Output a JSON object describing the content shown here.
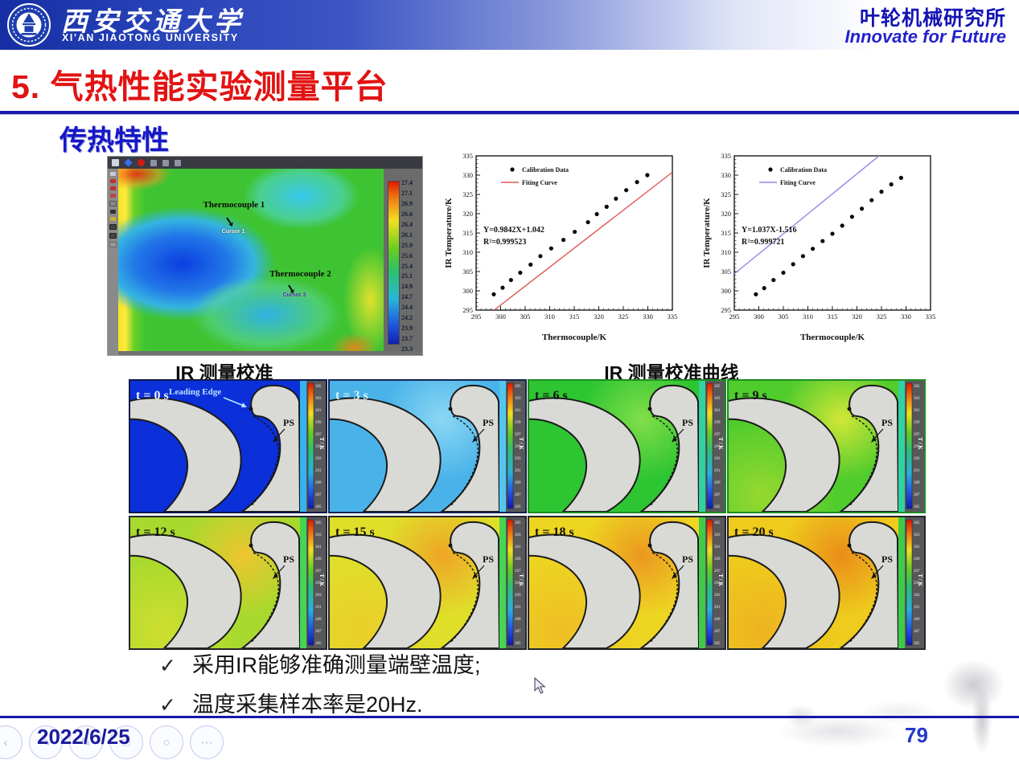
{
  "header": {
    "university_cn": "西安交通大学",
    "university_en": "XI'AN JIAOTONG UNIVERSITY",
    "institute": "叶轮机械研究所",
    "slogan": "Innovate for Future"
  },
  "page": {
    "title": "5. 气热性能实验测量平台",
    "section": "传热特性"
  },
  "ir_window": {
    "annotations": {
      "thermocouple1": "Thermocouple 1",
      "cursor1": "Cursor 1",
      "thermocouple2": "Thermocouple 2",
      "cursor2": "Cursor 3"
    },
    "colorbar_ticks": [
      "27.4",
      "27.1",
      "26.9",
      "26.6",
      "26.4",
      "26.1",
      "25.9",
      "25.6",
      "25.4",
      "25.1",
      "24.9",
      "24.7",
      "24.4",
      "24.2",
      "23.9",
      "23.7",
      "23.3"
    ]
  },
  "captions": {
    "ir_left": "IR 测量校准",
    "ir_right": "IR 测量校准曲线"
  },
  "chart_data": [
    {
      "type": "scatter",
      "xlabel": "Thermocouple/K",
      "ylabel": "IR Temperature/K",
      "xlim": [
        295,
        335
      ],
      "ylim": [
        295,
        335
      ],
      "tick_step": 5,
      "legend": [
        "Calibration Data",
        "Fiting Curve"
      ],
      "equation": "Y=0.9842X+1.042",
      "r_squared": "R²=0.999523",
      "fit": {
        "slope": 0.9842,
        "intercept": 1.042,
        "color": "#e05a5a"
      },
      "points": [
        [
          298.6,
          299.1
        ],
        [
          300.4,
          300.8
        ],
        [
          302.1,
          302.8
        ],
        [
          304.0,
          304.7
        ],
        [
          306.1,
          306.8
        ],
        [
          308.1,
          309.0
        ],
        [
          310.3,
          311.0
        ],
        [
          312.8,
          313.2
        ],
        [
          315.1,
          315.3
        ],
        [
          317.8,
          317.8
        ],
        [
          319.6,
          319.9
        ],
        [
          321.6,
          321.8
        ],
        [
          323.5,
          323.9
        ],
        [
          325.6,
          326.1
        ],
        [
          327.8,
          328.2
        ],
        [
          329.9,
          330.0
        ]
      ]
    },
    {
      "type": "scatter",
      "xlabel": "Thermocouple/K",
      "ylabel": "IR Temperature/K",
      "xlim": [
        295,
        335
      ],
      "ylim": [
        295,
        335
      ],
      "tick_step": 5,
      "legend": [
        "Calibration Data",
        "Fiting Curve"
      ],
      "equation": "Y=1.037X-1.516",
      "r_squared": "R²=0.999721",
      "fit": {
        "slope": 1.037,
        "intercept": -1.516,
        "color": "#8a8ae6"
      },
      "points": [
        [
          299.4,
          299.1
        ],
        [
          301.1,
          300.7
        ],
        [
          303.0,
          302.8
        ],
        [
          305.0,
          304.7
        ],
        [
          307.0,
          306.9
        ],
        [
          309.0,
          309.0
        ],
        [
          311.0,
          310.9
        ],
        [
          313.0,
          312.9
        ],
        [
          315.0,
          314.8
        ],
        [
          317.0,
          316.9
        ],
        [
          319.0,
          319.2
        ],
        [
          321.0,
          321.3
        ],
        [
          323.0,
          323.5
        ],
        [
          325.0,
          325.7
        ],
        [
          327.0,
          327.6
        ],
        [
          329.0,
          329.3
        ]
      ]
    }
  ],
  "blade_panels": {
    "colorbar_ticks": [
      "305",
      "303",
      "301",
      "299",
      "297",
      "295",
      "293",
      "291",
      "289",
      "287",
      "285"
    ],
    "colorbar_label": "T / K",
    "ps_label": "PS",
    "leading_edge_label": "Leading Edge",
    "panels": [
      {
        "time": "t = 0 s",
        "label_color": "#f2f6ff",
        "bg": "#0b2fd8",
        "hot": "",
        "wash": "",
        "strip": "#38b2ee",
        "border": "#101a4a",
        "show_leading_edge": true
      },
      {
        "time": "t = 3 s",
        "label_color": "#d8f2ff",
        "bg": "#49b3e9",
        "hot": "#8fd9f5",
        "wash": "",
        "strip": "#52c6f0",
        "border": "#15254f",
        "show_leading_edge": false
      },
      {
        "time": "t = 6 s",
        "label_color": "#101010",
        "bg": "#2ec532",
        "hot": "#86e04a",
        "wash": "",
        "strip": "#30d2a0",
        "border": "#1e8c22",
        "show_leading_edge": false
      },
      {
        "time": "t = 9 s",
        "label_color": "#101010",
        "bg": "#50cc2d",
        "hot": "#d9e838",
        "wash": "#a8dc30",
        "strip": "#30d2a0",
        "border": "#1e8c22",
        "show_leading_edge": false
      },
      {
        "time": "t = 12 s",
        "label_color": "#101010",
        "bg": "#a8d92e",
        "hot": "#f2c430",
        "wash": "#d8e030",
        "strip": "#46d452",
        "border": "#23262b",
        "show_leading_edge": false
      },
      {
        "time": "t = 15 s",
        "label_color": "#101010",
        "bg": "#dfdf2a",
        "hot": "#f0a226",
        "wash": "#eeca28",
        "strip": "#46d452",
        "border": "#23262b",
        "show_leading_edge": false
      },
      {
        "time": "t = 18 s",
        "label_color": "#101010",
        "bg": "#edd522",
        "hot": "#ec9420",
        "wash": "#eeb824",
        "strip": "#3ecc48",
        "border": "#23262b",
        "show_leading_edge": false
      },
      {
        "time": "t = 20 s",
        "label_color": "#101010",
        "bg": "#eecb1d",
        "hot": "#ea8a18",
        "wash": "#eead20",
        "strip": "#3ecc48",
        "border": "#23262b",
        "show_leading_edge": false
      }
    ]
  },
  "bullets": [
    {
      "mark": "✓",
      "text": "采用IR能够准确测量端壁温度;"
    },
    {
      "mark": "✓",
      "text": "温度采集样本率是20Hz."
    }
  ],
  "footer": {
    "date": "2022/6/25",
    "page": "79",
    "controls": [
      {
        "name": "previous-slide-icon",
        "glyph": "‹"
      },
      {
        "name": "pen-icon",
        "glyph": "✎"
      },
      {
        "name": "highlighter-icon",
        "glyph": "✎"
      },
      {
        "name": "slide-panel-icon",
        "glyph": "□"
      },
      {
        "name": "zoom-icon",
        "glyph": "○"
      },
      {
        "name": "more-options-icon",
        "glyph": "⋯"
      }
    ]
  }
}
